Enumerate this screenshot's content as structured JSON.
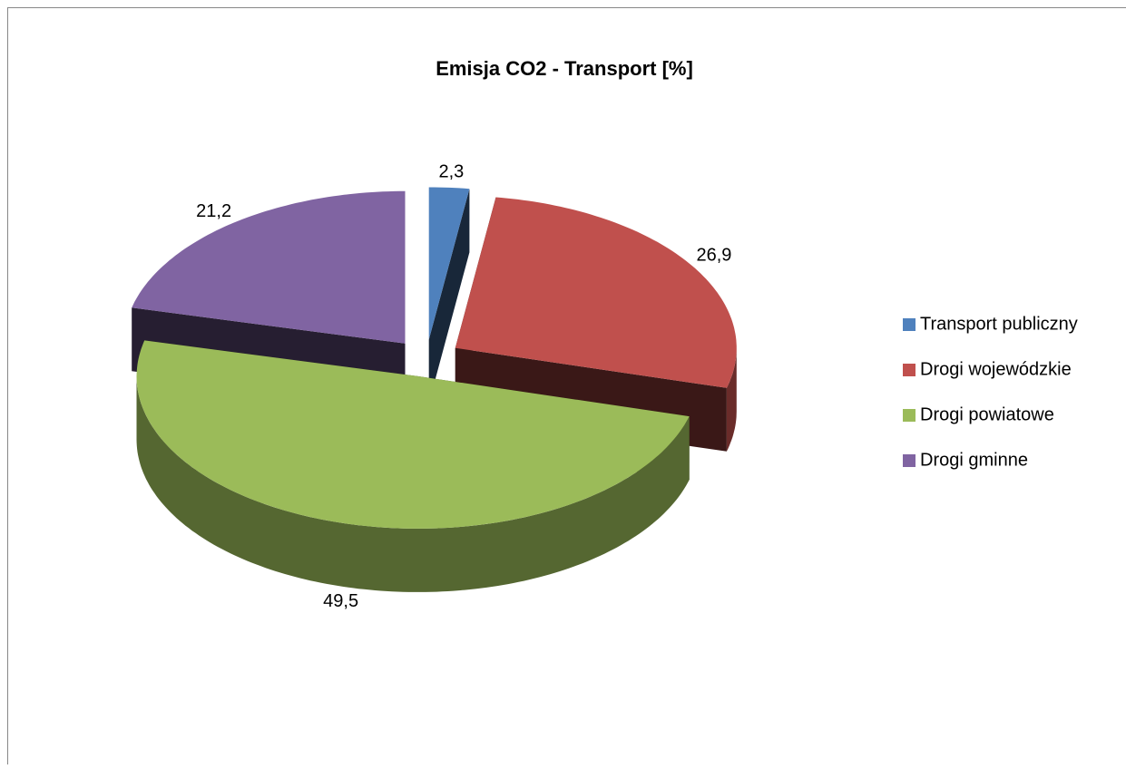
{
  "chart_data": {
    "type": "pie",
    "title": "Emisja CO2 - Transport [%]",
    "categories": [
      "Transport publiczny",
      "Drogi wojewódzkie",
      "Drogi powiatowe",
      "Drogi gminne"
    ],
    "values": [
      2.3,
      26.9,
      49.5,
      21.2
    ],
    "value_labels": [
      "2,3",
      "26,9",
      "49,5",
      "21,2"
    ],
    "colors": [
      "#4f81bd",
      "#c0504d",
      "#9bbb59",
      "#8064a2"
    ],
    "legend": "right",
    "exploded": true,
    "three_d": true
  }
}
